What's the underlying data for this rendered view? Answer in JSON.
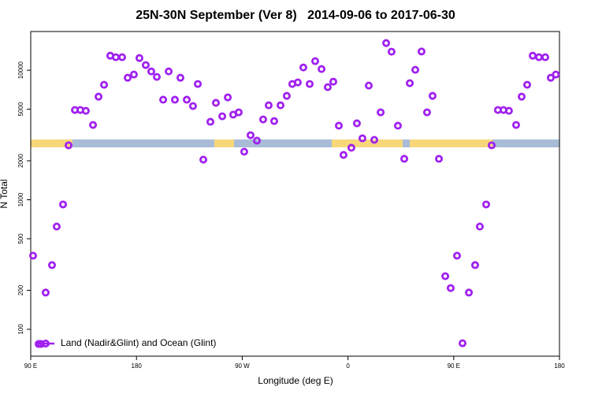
{
  "chart_data": {
    "type": "scatter",
    "title": "25N-30N September (Ver 8)   2014-09-06 to 2017-06-30",
    "xlabel": "Longitude (deg E)",
    "ylabel": "N Total",
    "ylog": true,
    "legend": "lower left",
    "xlim": [
      90,
      540
    ],
    "ylim": [
      62,
      19900
    ],
    "xticks": [
      {
        "value": 90,
        "label": "90 E"
      },
      {
        "value": 180,
        "label": "180"
      },
      {
        "value": 270,
        "label": "90 W"
      },
      {
        "value": 360,
        "label": "0"
      },
      {
        "value": 450,
        "label": "90 E"
      },
      {
        "value": 540,
        "label": "180"
      }
    ],
    "yticks": [
      100,
      200,
      500,
      1000,
      2000,
      5000,
      10000
    ],
    "series": [
      {
        "name": "Land (Nadir&Glint) and Ocean (Glint)",
        "color": "#a020f0",
        "x": [
          92.0,
          96.7,
          98.7,
          102.7,
          108.1,
          112.1,
          117.5,
          122.2,
          127.6,
          132.2,
          136.9,
          143.0,
          147.7,
          152.4,
          157.7,
          162.4,
          167.8,
          172.5,
          177.8,
          182.5,
          187.9,
          192.6,
          197.3,
          202.7,
          207.4,
          212.7,
          217.4,
          222.8,
          228.1,
          232.2,
          236.9,
          242.9,
          247.6,
          253.0,
          257.7,
          262.3,
          267.0,
          271.7,
          277.1,
          282.5,
          287.8,
          292.5,
          297.2,
          302.6,
          307.9,
          312.6,
          317.3,
          322.0,
          327.4,
          332.1,
          337.5,
          342.8,
          347.5,
          352.2,
          356.2,
          362.9,
          367.6,
          372.3,
          377.7,
          382.4,
          387.8,
          392.5,
          397.1,
          402.5,
          407.9,
          412.6,
          417.3,
          422.6,
          427.3,
          432.0,
          437.4,
          442.8,
          447.4,
          452.8,
          457.5,
          462.9,
          468.2,
          472.2,
          477.6,
          482.3,
          487.6,
          492.3,
          497.0,
          503.1,
          507.8,
          512.5,
          517.2,
          522.5,
          527.9,
          532.6,
          536.9
        ],
        "values": [
          370,
          77,
          77,
          192,
          313,
          621,
          920,
          2630,
          4930,
          4930,
          4860,
          3780,
          6250,
          7720,
          12950,
          12600,
          12600,
          8750,
          9260,
          12420,
          10960,
          9790,
          8880,
          5920,
          9790,
          5920,
          8750,
          5920,
          5290,
          7830,
          2040,
          4000,
          5600,
          4410,
          6170,
          4540,
          4730,
          2350,
          3150,
          2860,
          4170,
          5360,
          4050,
          5360,
          6340,
          7830,
          8050,
          10500,
          7830,
          11750,
          10210,
          7400,
          8160,
          3730,
          2220,
          2520,
          3890,
          2980,
          7610,
          2900,
          4730,
          16200,
          13900,
          3730,
          2070,
          7940,
          10070,
          13950,
          4730,
          6340,
          2070,
          257,
          208,
          370,
          78,
          192,
          313,
          621,
          920,
          2630,
          4930,
          4930,
          4860,
          3780,
          6250,
          7720,
          12950,
          12600,
          12600,
          8750,
          9260
        ]
      }
    ]
  }
}
